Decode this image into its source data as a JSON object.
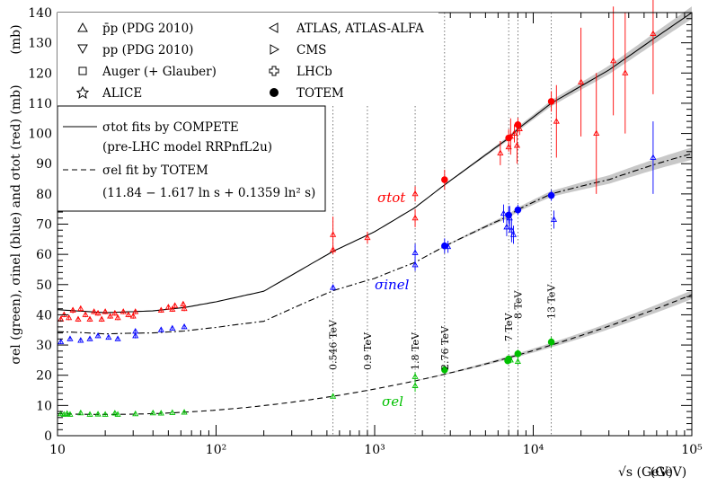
{
  "chart_data": {
    "type": "scatter",
    "title": "",
    "xlabel": "√s (GeV)",
    "ylabel": "σel (green), σinel (blue) and σtot (red) (mb)",
    "x_scale": "log",
    "xlim": [
      10,
      100000
    ],
    "ylim": [
      0,
      140
    ],
    "x_ticks": [
      10,
      100,
      1000,
      10000,
      100000
    ],
    "x_tick_labels": [
      "10",
      "10²",
      "10³",
      "10⁴",
      "10⁵"
    ],
    "y_ticks": [
      0,
      10,
      20,
      30,
      40,
      50,
      60,
      70,
      80,
      90,
      100,
      110,
      120,
      130,
      140
    ],
    "y_unit_label": "(mb)",
    "x_unit_label": "(GeV)",
    "energy_lines": [
      {
        "x": 546,
        "label": "0.546 TeV"
      },
      {
        "x": 900,
        "label": "0.9 TeV"
      },
      {
        "x": 1800,
        "label": "1.8 TeV"
      },
      {
        "x": 2760,
        "label": "2.76 TeV"
      },
      {
        "x": 7000,
        "label": "7 TeV"
      },
      {
        "x": 8000,
        "label": "8 TeV"
      },
      {
        "x": 13000,
        "label": "13 TeV"
      }
    ],
    "legend_markers": [
      {
        "symbol": "triangle-up",
        "label": "p̄p (PDG 2010)"
      },
      {
        "symbol": "triangle-down",
        "label": "pp (PDG 2010)"
      },
      {
        "symbol": "square",
        "label": "Auger (+ Glauber)"
      },
      {
        "symbol": "star",
        "label": "ALICE"
      },
      {
        "symbol": "triangle-left",
        "label": "ATLAS, ATLAS-ALFA"
      },
      {
        "symbol": "triangle-right",
        "label": "CMS"
      },
      {
        "symbol": "cross",
        "label": "LHCb"
      },
      {
        "symbol": "dot",
        "label": "TOTEM"
      }
    ],
    "legend_lines": {
      "tot_fit": "σtot fits by COMPETE",
      "tot_model": "(pre-LHC model RRPnfL2u)",
      "el_fit": "σel fit by TOTEM",
      "el_formula": "(11.84 − 1.617 ln s + 0.1359 ln² s)"
    },
    "curve_labels": {
      "tot": "σtot",
      "inel": "σinel",
      "el": "σel"
    },
    "colors": {
      "tot": "#ff0000",
      "inel": "#0000ff",
      "el": "#00c000"
    },
    "series": [
      {
        "name": "σtot (red)",
        "color": "#ff0000",
        "fit": "COMPETE",
        "points": [
          {
            "x": 10.5,
            "y": 38.5,
            "e": 0.8
          },
          {
            "x": 11,
            "y": 40,
            "e": 0.8
          },
          {
            "x": 11.8,
            "y": 39,
            "e": 0.8
          },
          {
            "x": 12.5,
            "y": 41.5,
            "e": 1
          },
          {
            "x": 13.5,
            "y": 38.5,
            "e": 0.8
          },
          {
            "x": 14,
            "y": 42,
            "e": 1
          },
          {
            "x": 15,
            "y": 40,
            "e": 0.8
          },
          {
            "x": 16,
            "y": 38.5,
            "e": 0.8
          },
          {
            "x": 17,
            "y": 41,
            "e": 0.8
          },
          {
            "x": 18,
            "y": 40.5,
            "e": 0.8
          },
          {
            "x": 19,
            "y": 38.5,
            "e": 0.8
          },
          {
            "x": 20,
            "y": 41,
            "e": 0.8
          },
          {
            "x": 21.5,
            "y": 39.5,
            "e": 0.8
          },
          {
            "x": 23,
            "y": 40.5,
            "e": 0.8
          },
          {
            "x": 24,
            "y": 39,
            "e": 0.8
          },
          {
            "x": 26,
            "y": 41,
            "e": 0.8
          },
          {
            "x": 28,
            "y": 40,
            "e": 0.8
          },
          {
            "x": 30,
            "y": 39.5,
            "e": 0.8
          },
          {
            "x": 31,
            "y": 41,
            "e": 0.8
          },
          {
            "x": 45,
            "y": 41.5,
            "e": 0.8
          },
          {
            "x": 50,
            "y": 42.5,
            "e": 0.8
          },
          {
            "x": 53,
            "y": 41.8,
            "e": 0.8
          },
          {
            "x": 55,
            "y": 43,
            "e": 0.8
          },
          {
            "x": 62,
            "y": 43.5,
            "e": 0.8
          },
          {
            "x": 63,
            "y": 42,
            "e": 0.8
          },
          {
            "x": 546,
            "y": 61.5,
            "e": 1.5
          },
          {
            "x": 546,
            "y": 66.5,
            "e": 6
          },
          {
            "x": 900,
            "y": 65.5,
            "e": 2
          },
          {
            "x": 1800,
            "y": 72,
            "e": 3
          },
          {
            "x": 1800,
            "y": 80,
            "e": 2.5
          },
          {
            "x": 2760,
            "y": 84.7,
            "e": 3.3,
            "filled": true
          },
          {
            "x": 6200,
            "y": 93.5,
            "e": 4
          },
          {
            "x": 7000,
            "y": 98.5,
            "e": 2.9,
            "filled": true
          },
          {
            "x": 7000,
            "y": 95.5,
            "e": 1.5
          },
          {
            "x": 7200,
            "y": 99,
            "e": 6
          },
          {
            "x": 7600,
            "y": 100,
            "e": 3
          },
          {
            "x": 7900,
            "y": 96,
            "e": 6
          },
          {
            "x": 8000,
            "y": 102.9,
            "e": 2.3,
            "filled": true
          },
          {
            "x": 8200,
            "y": 101.5,
            "e": 2
          },
          {
            "x": 13000,
            "y": 110.6,
            "e": 3.4,
            "filled": true
          },
          {
            "x": 14000,
            "y": 104,
            "e": 12
          },
          {
            "x": 20000,
            "y": 117,
            "e": 18
          },
          {
            "x": 25000,
            "y": 100,
            "e": 20
          },
          {
            "x": 32000,
            "y": 124,
            "e": 18
          },
          {
            "x": 38000,
            "y": 120,
            "e": 20
          },
          {
            "x": 57000,
            "y": 133,
            "e": 20
          }
        ]
      },
      {
        "name": "σinel (blue)",
        "color": "#0000ff",
        "fit": "COMPETE",
        "points": [
          {
            "x": 10.5,
            "y": 31,
            "e": 0.6
          },
          {
            "x": 12,
            "y": 32,
            "e": 0.6
          },
          {
            "x": 14,
            "y": 31.5,
            "e": 0.6
          },
          {
            "x": 16,
            "y": 32,
            "e": 0.6
          },
          {
            "x": 18,
            "y": 33,
            "e": 0.6
          },
          {
            "x": 21,
            "y": 32.5,
            "e": 0.6
          },
          {
            "x": 24,
            "y": 32,
            "e": 0.6
          },
          {
            "x": 31,
            "y": 33,
            "e": 0.8
          },
          {
            "x": 31,
            "y": 34.5,
            "e": 0.8
          },
          {
            "x": 45,
            "y": 35,
            "e": 0.6
          },
          {
            "x": 53,
            "y": 35.5,
            "e": 0.6
          },
          {
            "x": 63,
            "y": 36,
            "e": 0.6
          },
          {
            "x": 546,
            "y": 49,
            "e": 1
          },
          {
            "x": 1800,
            "y": 60.5,
            "e": 3
          },
          {
            "x": 1800,
            "y": 56.5,
            "e": 2
          },
          {
            "x": 2760,
            "y": 62.8,
            "e": 2.5,
            "filled": true
          },
          {
            "x": 2900,
            "y": 62.5,
            "e": 2
          },
          {
            "x": 6500,
            "y": 73.5,
            "e": 3
          },
          {
            "x": 6800,
            "y": 69,
            "e": 3
          },
          {
            "x": 7000,
            "y": 73,
            "e": 3,
            "filled": true
          },
          {
            "x": 7100,
            "y": 72,
            "e": 4
          },
          {
            "x": 7300,
            "y": 68,
            "e": 4
          },
          {
            "x": 7500,
            "y": 66.5,
            "e": 3
          },
          {
            "x": 8000,
            "y": 74.7,
            "e": 1.7,
            "filled": true
          },
          {
            "x": 13000,
            "y": 79.5,
            "e": 1.8,
            "filled": true
          },
          {
            "x": 13500,
            "y": 71.5,
            "e": 3
          },
          {
            "x": 57000,
            "y": 92,
            "e": 12
          }
        ]
      },
      {
        "name": "σel (green)",
        "color": "#00c000",
        "fit": "TOTEM",
        "points": [
          {
            "x": 10.5,
            "y": 7.2,
            "e": 0.5
          },
          {
            "x": 11,
            "y": 7,
            "e": 0.5
          },
          {
            "x": 11.5,
            "y": 7.3,
            "e": 0.5
          },
          {
            "x": 12,
            "y": 7,
            "e": 0.5
          },
          {
            "x": 14,
            "y": 7.5,
            "e": 0.5
          },
          {
            "x": 16,
            "y": 7,
            "e": 0.5
          },
          {
            "x": 18,
            "y": 7.1,
            "e": 0.5
          },
          {
            "x": 20,
            "y": 7,
            "e": 0.5
          },
          {
            "x": 23,
            "y": 7.4,
            "e": 0.5
          },
          {
            "x": 24,
            "y": 7,
            "e": 0.5
          },
          {
            "x": 31,
            "y": 7.2,
            "e": 0.5
          },
          {
            "x": 40,
            "y": 7.5,
            "e": 0.5
          },
          {
            "x": 45,
            "y": 7.4,
            "e": 0.5
          },
          {
            "x": 53,
            "y": 7.6,
            "e": 0.5
          },
          {
            "x": 63,
            "y": 7.7,
            "e": 0.5
          },
          {
            "x": 546,
            "y": 13,
            "e": 0.6
          },
          {
            "x": 1800,
            "y": 16.5,
            "e": 2
          },
          {
            "x": 1800,
            "y": 19.5,
            "e": 1.5
          },
          {
            "x": 2760,
            "y": 21.8,
            "e": 1.4,
            "filled": true
          },
          {
            "x": 6900,
            "y": 24.8,
            "e": 1.2,
            "filled": true
          },
          {
            "x": 7000,
            "y": 25.4,
            "e": 1.1,
            "filled": true
          },
          {
            "x": 7200,
            "y": 25,
            "e": 1
          },
          {
            "x": 8000,
            "y": 27.1,
            "e": 1.4,
            "filled": true
          },
          {
            "x": 8000,
            "y": 24.5,
            "e": 1
          },
          {
            "x": 13000,
            "y": 31,
            "e": 1.7,
            "filled": true
          }
        ]
      }
    ]
  }
}
